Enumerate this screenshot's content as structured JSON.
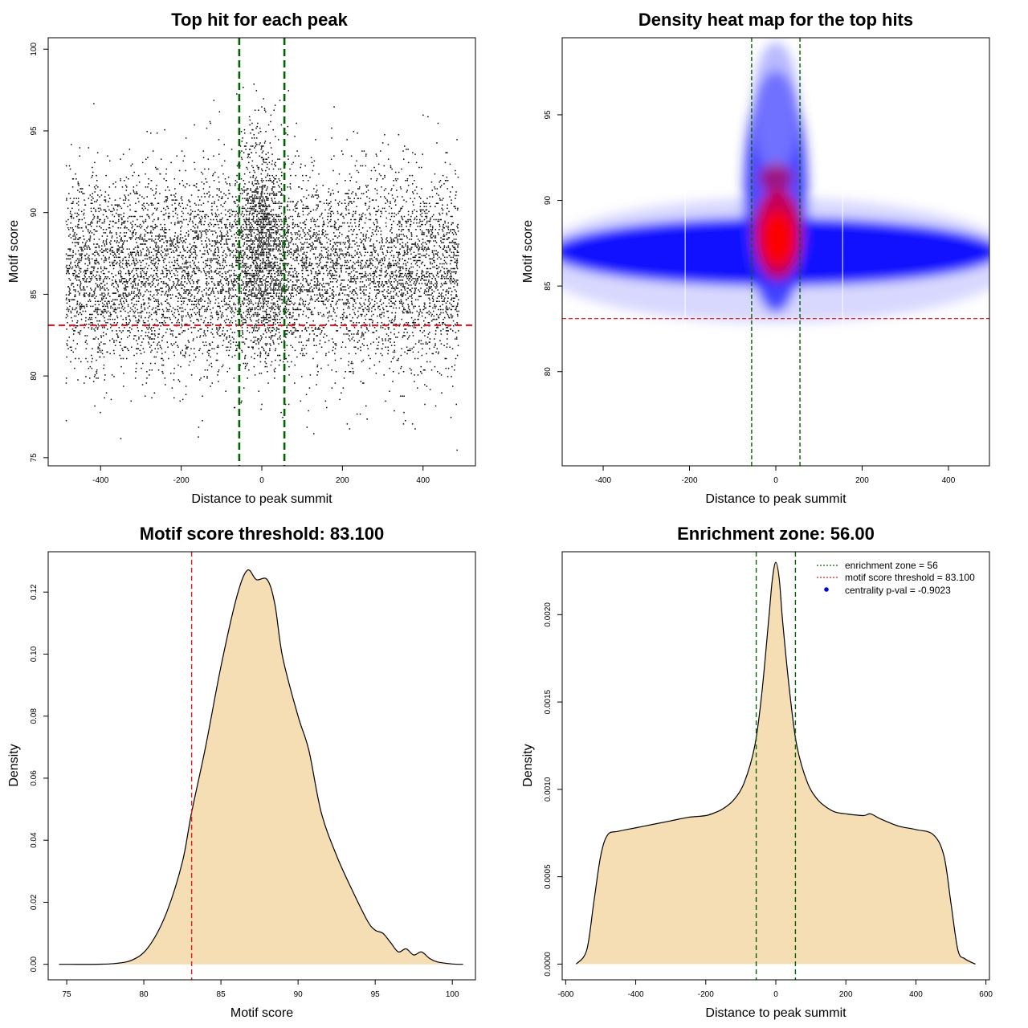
{
  "chart_data": [
    {
      "type": "scatter",
      "title": "Top hit for each peak",
      "xlabel": "Distance to peak summit",
      "ylabel": "Motif score",
      "xlim": [
        -530,
        530
      ],
      "ylim": [
        74.5,
        100.7
      ],
      "xticks": [
        -400,
        -200,
        0,
        200,
        400
      ],
      "yticks": [
        75,
        80,
        85,
        90,
        95,
        100
      ],
      "threshold": 83.1,
      "zone": [
        -56,
        56
      ],
      "colors": {
        "points": "#000000",
        "threshold": "#e41a1c",
        "zone": "#006400"
      }
    },
    {
      "type": "heatmap",
      "title": "Density heat map for the top hits",
      "xlabel": "Distance to peak summit",
      "ylabel": "Motif score",
      "xlim": [
        -495,
        495
      ],
      "ylim": [
        74.5,
        99.5
      ],
      "xticks": [
        -400,
        -200,
        0,
        200,
        400
      ],
      "yticks": [
        80,
        85,
        90,
        95
      ],
      "threshold": 83.1,
      "zone": [
        -56,
        56
      ],
      "colors": {
        "low": "#ffffff",
        "mid": "#0000ff",
        "high": "#ff0000",
        "threshold": "#e41a1c",
        "zone": "#006400"
      }
    },
    {
      "type": "area",
      "title": "Motif score threshold: 83.100",
      "xlabel": "Motif score",
      "ylabel": "Density",
      "xlim": [
        73.8,
        101.5
      ],
      "ylim": [
        -0.005,
        0.133
      ],
      "xticks": [
        75,
        80,
        85,
        90,
        95,
        100
      ],
      "yticks": [
        0.0,
        0.02,
        0.04,
        0.06,
        0.08,
        0.1,
        0.12
      ],
      "ytick_labels": [
        "0.00",
        "0.02",
        "0.04",
        "0.06",
        "0.08",
        "0.10",
        "0.12"
      ],
      "threshold": 83.1,
      "x": [
        74.5,
        78,
        79.5,
        80.5,
        81.5,
        82.5,
        83.1,
        84,
        85,
        86,
        86.7,
        87.3,
        88,
        88.5,
        89,
        90,
        90.7,
        91.5,
        92.5,
        93.5,
        94.5,
        95,
        95.5,
        96,
        96.5,
        97,
        97.5,
        98,
        98.5,
        99,
        100,
        100.7
      ],
      "y": [
        0,
        0.0002,
        0.002,
        0.007,
        0.017,
        0.033,
        0.049,
        0.07,
        0.096,
        0.118,
        0.127,
        0.124,
        0.124,
        0.116,
        0.099,
        0.08,
        0.069,
        0.049,
        0.035,
        0.024,
        0.014,
        0.011,
        0.01,
        0.007,
        0.004,
        0.005,
        0.003,
        0.004,
        0.002,
        0.0008,
        0.0001,
        0
      ],
      "colors": {
        "fill": "#f5deb3",
        "line": "#000000",
        "threshold": "#e41a1c"
      }
    },
    {
      "type": "area",
      "title": "Enrichment zone: 56.00",
      "xlabel": "Distance to peak summit",
      "ylabel": "Density",
      "xlim": [
        -610,
        610
      ],
      "ylim": [
        -9e-05,
        0.00236
      ],
      "xticks": [
        -600,
        -400,
        -200,
        0,
        200,
        400,
        600
      ],
      "yticks": [
        0.0,
        0.0005,
        0.001,
        0.0015,
        0.002
      ],
      "ytick_labels": [
        "0.0000",
        "0.0005",
        "0.0010",
        "0.0015",
        "0.0020"
      ],
      "zone": [
        -56,
        56
      ],
      "x": [
        -570,
        -540,
        -520,
        -500,
        -480,
        -450,
        -400,
        -350,
        -300,
        -250,
        -200,
        -170,
        -150,
        -120,
        -90,
        -60,
        -40,
        -20,
        -10,
        0,
        10,
        20,
        40,
        60,
        90,
        120,
        150,
        170,
        200,
        250,
        270,
        300,
        350,
        400,
        450,
        480,
        500,
        520,
        540,
        570
      ],
      "y": [
        0,
        8e-05,
        0.00035,
        0.00062,
        0.00074,
        0.00076,
        0.00078,
        0.0008,
        0.00082,
        0.00084,
        0.00085,
        0.00087,
        0.00089,
        0.00094,
        0.00104,
        0.00125,
        0.00155,
        0.00198,
        0.0022,
        0.0023,
        0.0022,
        0.00195,
        0.00155,
        0.00125,
        0.00104,
        0.00094,
        0.00089,
        0.00087,
        0.00086,
        0.00085,
        0.00086,
        0.00083,
        0.00079,
        0.00077,
        0.00074,
        0.00062,
        0.00035,
        8e-05,
        3e-05,
        0
      ],
      "legend": [
        {
          "label": "enrichment zone = 56",
          "style": "dotted",
          "color": "#006400"
        },
        {
          "label": "motif score threshold = 83.100",
          "style": "dotted",
          "color": "#e41a1c"
        },
        {
          "label": "centrality p-val = -0.9023",
          "style": "point",
          "color": "#0000ff"
        }
      ],
      "colors": {
        "fill": "#f5deb3",
        "line": "#000000",
        "zone": "#006400"
      }
    }
  ]
}
